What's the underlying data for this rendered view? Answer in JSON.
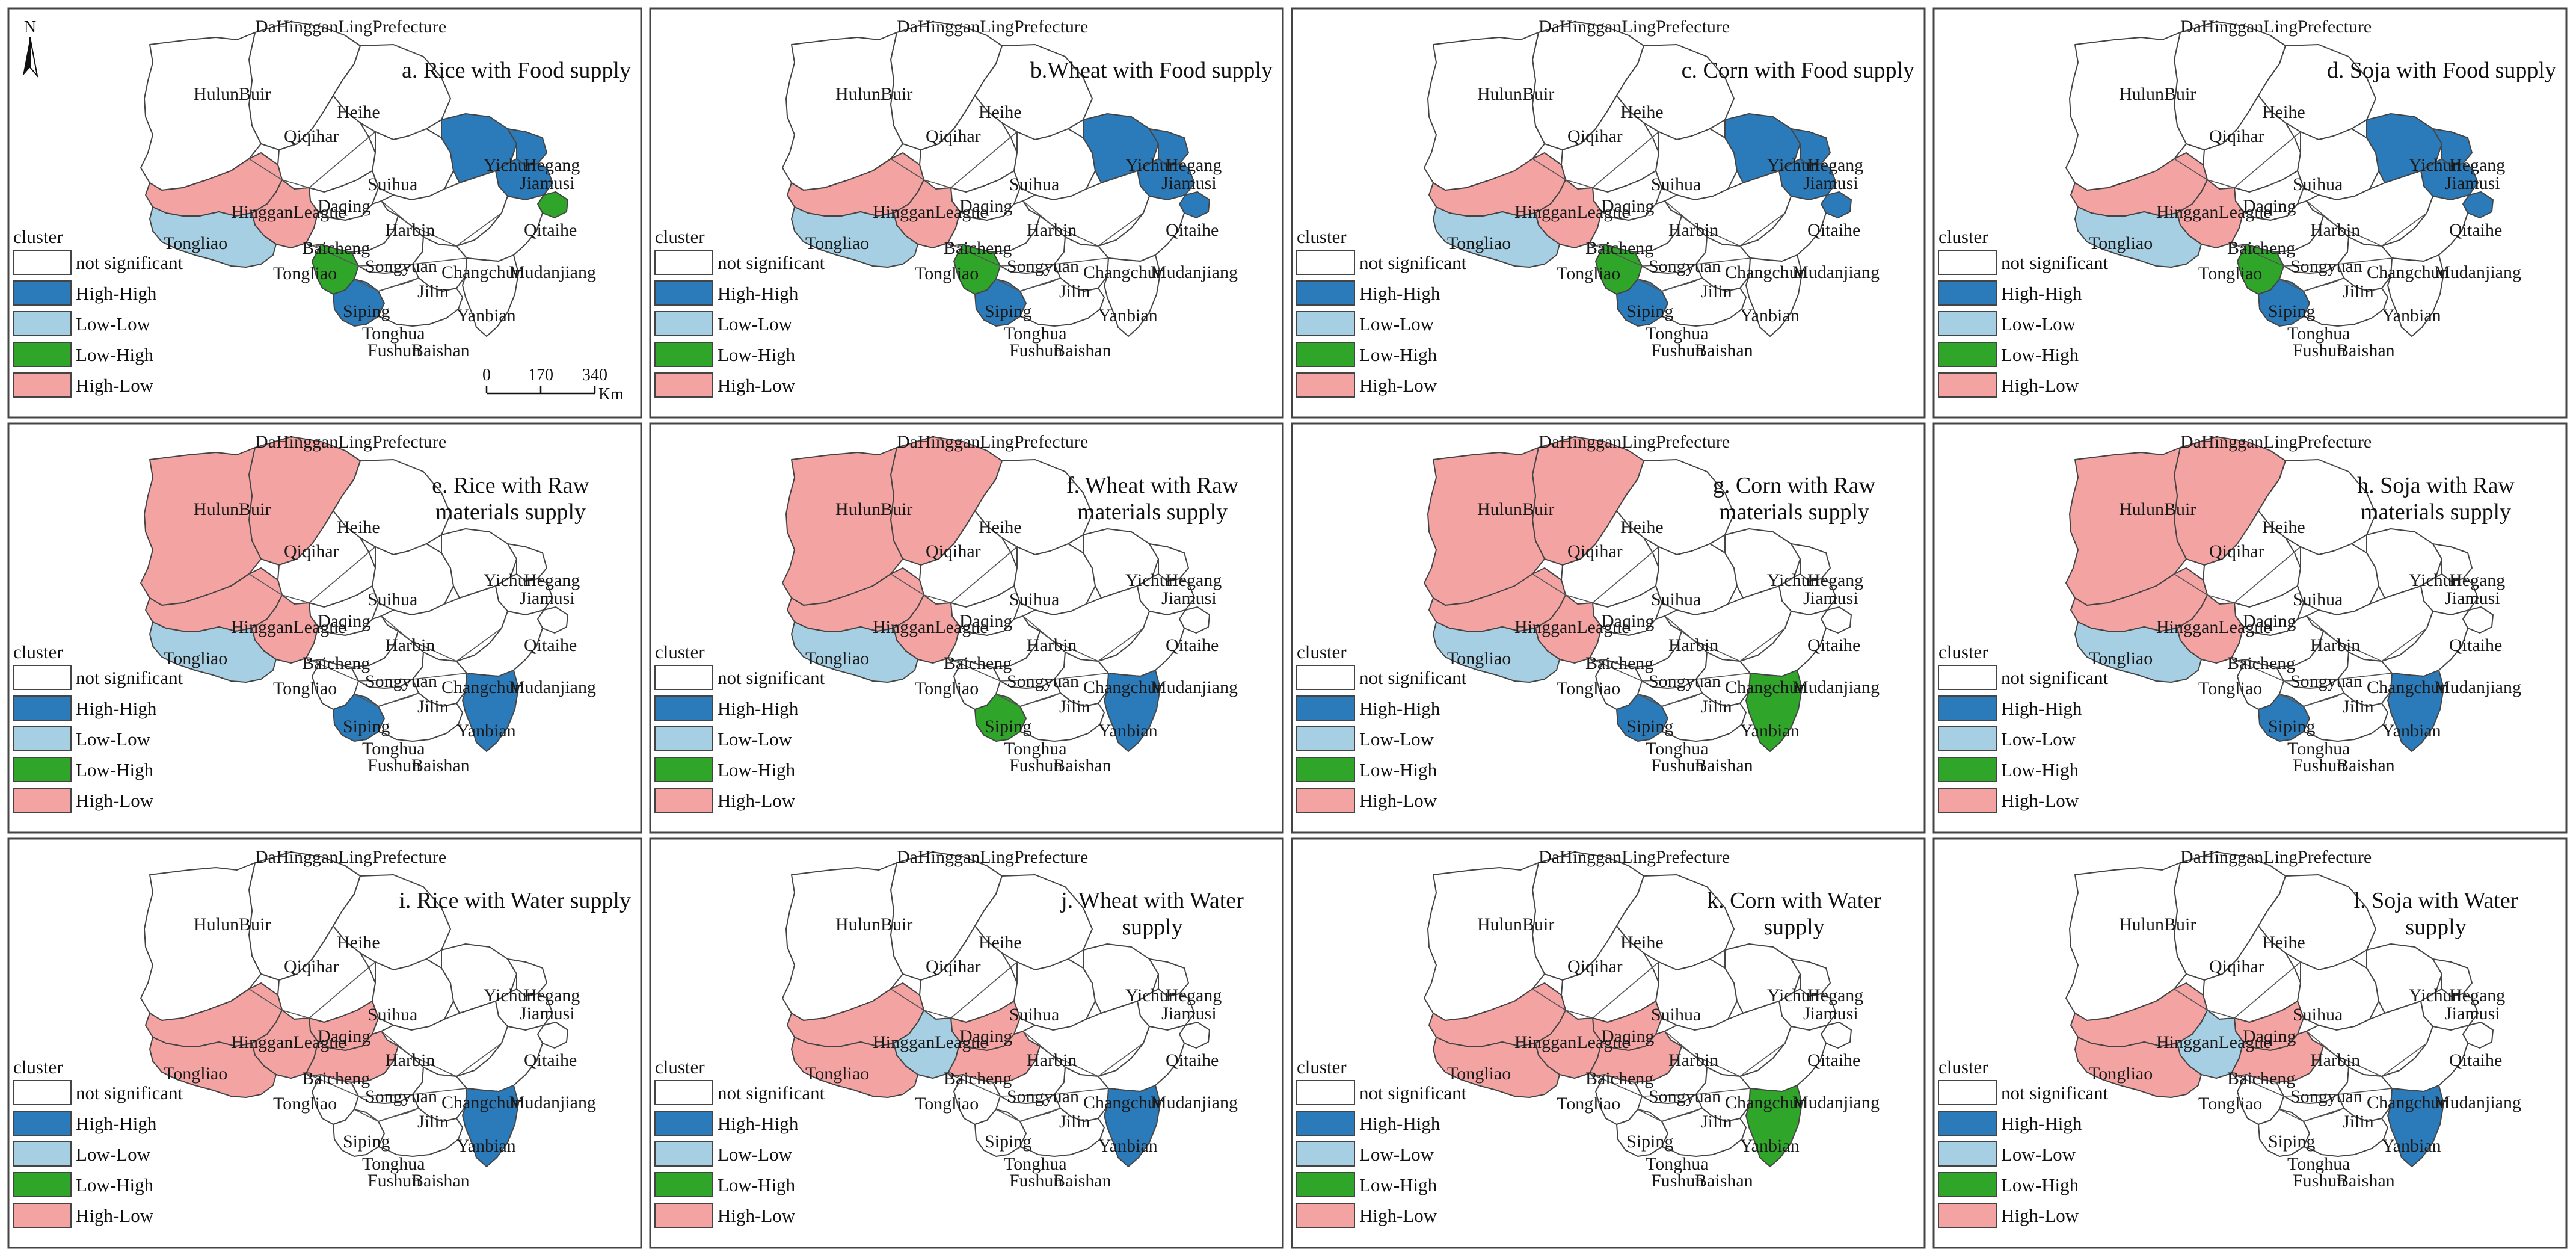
{
  "legend": {
    "title": "cluster",
    "categories": [
      {
        "key": "ns",
        "label": "not significant",
        "color": "#ffffff"
      },
      {
        "key": "hh",
        "label": "High-High",
        "color": "#2b7bba"
      },
      {
        "key": "ll",
        "label": "Low-Low",
        "color": "#a6cfe3"
      },
      {
        "key": "lh",
        "label": "Low-High",
        "color": "#2fa52a"
      },
      {
        "key": "hl",
        "label": "High-Low",
        "color": "#f4a3a3"
      }
    ]
  },
  "north_arrow": {
    "label": "N"
  },
  "scale_bar": {
    "ticks": [
      "0",
      "170",
      "340"
    ],
    "unit": "Km"
  },
  "panels": [
    {
      "title": [
        "a. Rice with Food supply"
      ],
      "clusters": {
        "HulunBuir": "ns",
        "DaHinggan": "ns",
        "Heihe": "ns",
        "Qiqihar": "ns",
        "Daqing": "ns",
        "Suihua": "ns",
        "Yichun": "hh",
        "Hegang": "hh",
        "Jiamusi": "hh",
        "Harbin": "ns",
        "Qitaihe": "lh",
        "Hinggan": "hl",
        "Baicheng": "hl",
        "Songyuan": "ns",
        "Tongliao": "ll",
        "Changchun": "ns",
        "Jilin": "ns",
        "Siping": "lh",
        "Mudanjiang": "ns",
        "Yanbian": "ns",
        "Tonghua": "hh",
        "Baishan": "ns"
      }
    },
    {
      "title": [
        "b.Wheat with Food supply"
      ],
      "clusters": {
        "HulunBuir": "ns",
        "DaHinggan": "ns",
        "Heihe": "ns",
        "Qiqihar": "ns",
        "Daqing": "ns",
        "Suihua": "ns",
        "Yichun": "hh",
        "Hegang": "hh",
        "Jiamusi": "hh",
        "Harbin": "ns",
        "Qitaihe": "hh",
        "Hinggan": "hl",
        "Baicheng": "hl",
        "Songyuan": "ns",
        "Tongliao": "ll",
        "Changchun": "ns",
        "Jilin": "ns",
        "Siping": "lh",
        "Mudanjiang": "ns",
        "Yanbian": "ns",
        "Tonghua": "hh",
        "Baishan": "ns"
      }
    },
    {
      "title": [
        "c. Corn with Food supply"
      ],
      "clusters": {
        "HulunBuir": "ns",
        "DaHinggan": "ns",
        "Heihe": "ns",
        "Qiqihar": "ns",
        "Daqing": "ns",
        "Suihua": "ns",
        "Yichun": "hh",
        "Hegang": "hh",
        "Jiamusi": "hh",
        "Harbin": "ns",
        "Qitaihe": "hh",
        "Hinggan": "hl",
        "Baicheng": "hl",
        "Songyuan": "ns",
        "Tongliao": "ll",
        "Changchun": "ns",
        "Jilin": "ns",
        "Siping": "lh",
        "Mudanjiang": "ns",
        "Yanbian": "ns",
        "Tonghua": "hh",
        "Baishan": "ns"
      }
    },
    {
      "title": [
        "d. Soja with Food supply"
      ],
      "clusters": {
        "HulunBuir": "ns",
        "DaHinggan": "ns",
        "Heihe": "ns",
        "Qiqihar": "ns",
        "Daqing": "ns",
        "Suihua": "ns",
        "Yichun": "hh",
        "Hegang": "hh",
        "Jiamusi": "hh",
        "Harbin": "ns",
        "Qitaihe": "hh",
        "Hinggan": "hl",
        "Baicheng": "hl",
        "Songyuan": "ns",
        "Tongliao": "ll",
        "Changchun": "ns",
        "Jilin": "ns",
        "Siping": "lh",
        "Mudanjiang": "ns",
        "Yanbian": "ns",
        "Tonghua": "hh",
        "Baishan": "ns"
      }
    },
    {
      "title": [
        "e. Rice with Raw",
        "materials supply"
      ],
      "clusters": {
        "HulunBuir": "hl",
        "DaHinggan": "hl",
        "Heihe": "ns",
        "Qiqihar": "ns",
        "Daqing": "ns",
        "Suihua": "ns",
        "Yichun": "ns",
        "Hegang": "ns",
        "Jiamusi": "ns",
        "Harbin": "ns",
        "Qitaihe": "ns",
        "Hinggan": "hl",
        "Baicheng": "hl",
        "Songyuan": "ns",
        "Tongliao": "ll",
        "Changchun": "ns",
        "Jilin": "ns",
        "Siping": "ns",
        "Mudanjiang": "ns",
        "Yanbian": "hh",
        "Tonghua": "hh",
        "Baishan": "ns"
      }
    },
    {
      "title": [
        "f. Wheat with Raw",
        "materials supply"
      ],
      "clusters": {
        "HulunBuir": "hl",
        "DaHinggan": "hl",
        "Heihe": "ns",
        "Qiqihar": "ns",
        "Daqing": "ns",
        "Suihua": "ns",
        "Yichun": "ns",
        "Hegang": "ns",
        "Jiamusi": "ns",
        "Harbin": "ns",
        "Qitaihe": "ns",
        "Hinggan": "hl",
        "Baicheng": "hl",
        "Songyuan": "ns",
        "Tongliao": "ll",
        "Changchun": "ns",
        "Jilin": "ns",
        "Siping": "ns",
        "Mudanjiang": "ns",
        "Yanbian": "hh",
        "Tonghua": "lh",
        "Baishan": "ns"
      }
    },
    {
      "title": [
        "g. Corn with Raw",
        "materials supply"
      ],
      "clusters": {
        "HulunBuir": "hl",
        "DaHinggan": "hl",
        "Heihe": "ns",
        "Qiqihar": "ns",
        "Daqing": "ns",
        "Suihua": "ns",
        "Yichun": "ns",
        "Hegang": "ns",
        "Jiamusi": "ns",
        "Harbin": "ns",
        "Qitaihe": "ns",
        "Hinggan": "hl",
        "Baicheng": "hl",
        "Songyuan": "ns",
        "Tongliao": "ll",
        "Changchun": "ns",
        "Jilin": "ns",
        "Siping": "ns",
        "Mudanjiang": "ns",
        "Yanbian": "lh",
        "Tonghua": "hh",
        "Baishan": "ns"
      }
    },
    {
      "title": [
        "h. Soja with Raw",
        "materials supply"
      ],
      "clusters": {
        "HulunBuir": "hl",
        "DaHinggan": "hl",
        "Heihe": "ns",
        "Qiqihar": "ns",
        "Daqing": "ns",
        "Suihua": "ns",
        "Yichun": "ns",
        "Hegang": "ns",
        "Jiamusi": "ns",
        "Harbin": "ns",
        "Qitaihe": "ns",
        "Hinggan": "hl",
        "Baicheng": "hl",
        "Songyuan": "ns",
        "Tongliao": "ll",
        "Changchun": "ns",
        "Jilin": "ns",
        "Siping": "ns",
        "Mudanjiang": "ns",
        "Yanbian": "hh",
        "Tonghua": "hh",
        "Baishan": "ns"
      }
    },
    {
      "title": [
        "i. Rice with Water supply"
      ],
      "clusters": {
        "HulunBuir": "ns",
        "DaHinggan": "ns",
        "Heihe": "ns",
        "Qiqihar": "ns",
        "Daqing": "hl",
        "Suihua": "ns",
        "Yichun": "ns",
        "Hegang": "ns",
        "Jiamusi": "ns",
        "Harbin": "ns",
        "Qitaihe": "ns",
        "Hinggan": "hl",
        "Baicheng": "hl",
        "Songyuan": "hl",
        "Tongliao": "hl",
        "Changchun": "ns",
        "Jilin": "ns",
        "Siping": "ns",
        "Mudanjiang": "ns",
        "Yanbian": "hh",
        "Tonghua": "ns",
        "Baishan": "ns"
      }
    },
    {
      "title": [
        "j. Wheat with Water",
        "supply"
      ],
      "clusters": {
        "HulunBuir": "ns",
        "DaHinggan": "ns",
        "Heihe": "ns",
        "Qiqihar": "ns",
        "Daqing": "hl",
        "Suihua": "ns",
        "Yichun": "ns",
        "Hegang": "ns",
        "Jiamusi": "ns",
        "Harbin": "ns",
        "Qitaihe": "ns",
        "Hinggan": "hl",
        "Baicheng": "ll",
        "Songyuan": "hl",
        "Tongliao": "hl",
        "Changchun": "ns",
        "Jilin": "ns",
        "Siping": "ns",
        "Mudanjiang": "ns",
        "Yanbian": "hh",
        "Tonghua": "ns",
        "Baishan": "ns"
      }
    },
    {
      "title": [
        "k. Corn with Water",
        "supply"
      ],
      "clusters": {
        "HulunBuir": "ns",
        "DaHinggan": "ns",
        "Heihe": "ns",
        "Qiqihar": "ns",
        "Daqing": "hl",
        "Suihua": "ns",
        "Yichun": "ns",
        "Hegang": "ns",
        "Jiamusi": "ns",
        "Harbin": "ns",
        "Qitaihe": "ns",
        "Hinggan": "hl",
        "Baicheng": "hl",
        "Songyuan": "hl",
        "Tongliao": "hl",
        "Changchun": "ns",
        "Jilin": "ns",
        "Siping": "ns",
        "Mudanjiang": "ns",
        "Yanbian": "lh",
        "Tonghua": "ns",
        "Baishan": "ns"
      }
    },
    {
      "title": [
        "l. Soja with Water",
        "supply"
      ],
      "clusters": {
        "HulunBuir": "ns",
        "DaHinggan": "ns",
        "Heihe": "ns",
        "Qiqihar": "ns",
        "Daqing": "hl",
        "Suihua": "ns",
        "Yichun": "ns",
        "Hegang": "ns",
        "Jiamusi": "ns",
        "Harbin": "ns",
        "Qitaihe": "ns",
        "Hinggan": "hl",
        "Baicheng": "ll",
        "Songyuan": "hl",
        "Tongliao": "hl",
        "Changchun": "ns",
        "Jilin": "ns",
        "Siping": "ns",
        "Mudanjiang": "ns",
        "Yanbian": "hh",
        "Tonghua": "ns",
        "Baishan": "ns"
      }
    }
  ],
  "city_labels": [
    {
      "id": "DaHinggan",
      "text": "DaHingganLingPrefecture"
    },
    {
      "id": "HulunBuir",
      "text": "HulunBuir"
    },
    {
      "id": "Heihe",
      "text": "Heihe"
    },
    {
      "id": "Qiqihar",
      "text": "Qiqihar"
    },
    {
      "id": "Yichun",
      "text": "Yichun"
    },
    {
      "id": "Hegang",
      "text": "Hegang"
    },
    {
      "id": "Jiamusi",
      "text": "Jiamusi"
    },
    {
      "id": "Suihua",
      "text": "Suihua"
    },
    {
      "id": "Daqing",
      "text": "Daqing"
    },
    {
      "id": "Hinggan",
      "text": "HingganLeague"
    },
    {
      "id": "Qitaihe",
      "text": "Qitaihe"
    },
    {
      "id": "Harbin",
      "text": "Harbin"
    },
    {
      "id": "Tongliao1",
      "text": "Tongliao"
    },
    {
      "id": "Baicheng",
      "text": "Baicheng"
    },
    {
      "id": "Tongliao2",
      "text": "Tongliao"
    },
    {
      "id": "Songyuan",
      "text": "Songyuan"
    },
    {
      "id": "Changchun",
      "text": "Changchun"
    },
    {
      "id": "Mudanjiang",
      "text": "Mudanjiang"
    },
    {
      "id": "Jilin",
      "text": "Jilin"
    },
    {
      "id": "Siping",
      "text": "Siping"
    },
    {
      "id": "Yanbian",
      "text": "Yanbian"
    },
    {
      "id": "Tonghua",
      "text": "Tonghua"
    },
    {
      "id": "Fushun",
      "text": "Fushun"
    },
    {
      "id": "Baishan",
      "text": "Baishan"
    }
  ]
}
